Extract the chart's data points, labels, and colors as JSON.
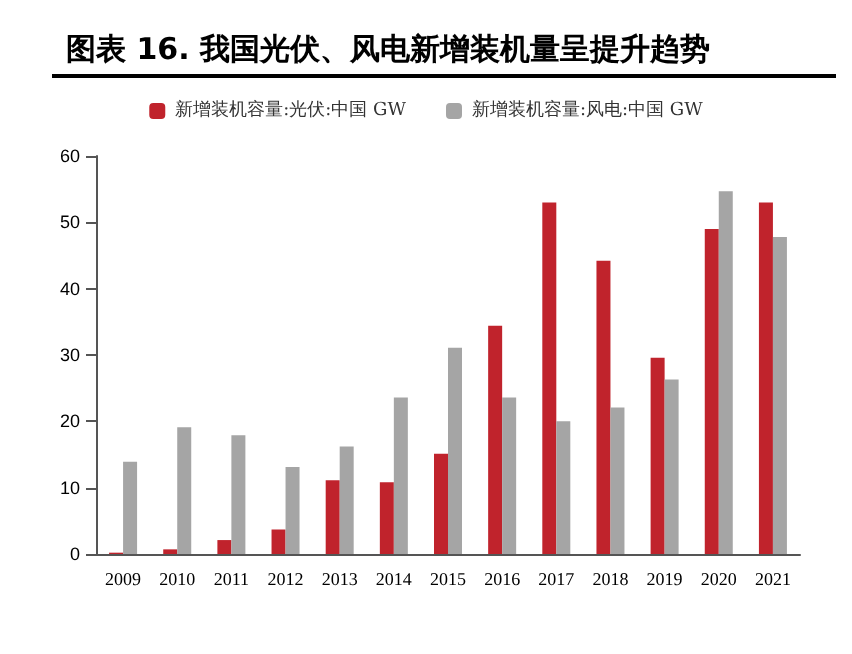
{
  "chart_data": {
    "type": "bar",
    "title": "图表 16. 我国光伏、风电新增装机量呈提升趋势",
    "categories": [
      "2009",
      "2010",
      "2011",
      "2012",
      "2013",
      "2014",
      "2015",
      "2016",
      "2017",
      "2018",
      "2019",
      "2020",
      "2021"
    ],
    "series": [
      {
        "name": "新增装机容量:光伏:中国 GW",
        "color": "#c0232c",
        "values": [
          0.2,
          0.7,
          2.1,
          3.7,
          11.1,
          10.8,
          15.1,
          34.4,
          53,
          44.2,
          29.6,
          49,
          53
        ]
      },
      {
        "name": "新增装机容量:风电:中国 GW",
        "color": "#a5a5a5",
        "values": [
          13.9,
          19.1,
          17.9,
          13.1,
          16.2,
          23.6,
          31.1,
          23.6,
          20.0,
          22.1,
          26.3,
          54.7,
          47.8
        ]
      }
    ],
    "ylim": [
      0,
      60
    ],
    "yticks": [
      0,
      10,
      20,
      30,
      40,
      50,
      60
    ],
    "grid": false,
    "legend": "top"
  }
}
